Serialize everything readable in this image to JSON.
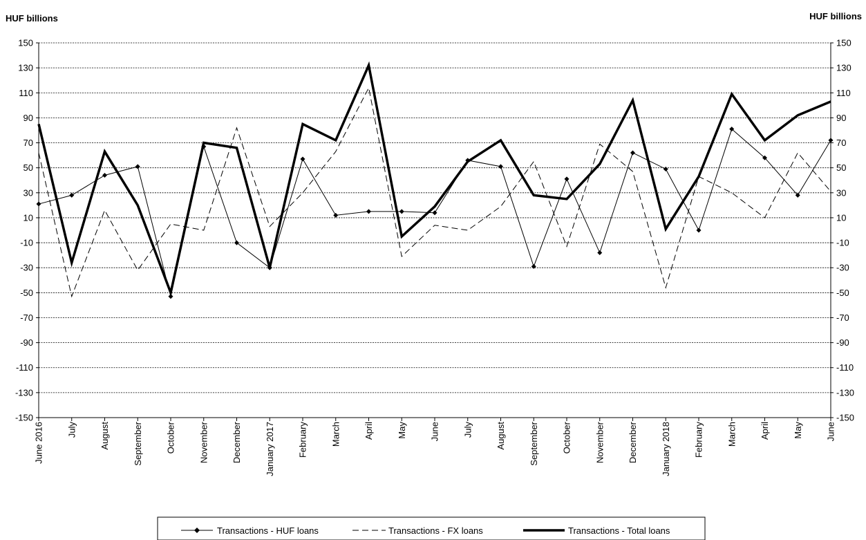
{
  "chart_data": {
    "type": "line",
    "y_unit_left": "HUF billions",
    "y_unit_right": "HUF billions",
    "ylim": [
      -150,
      150
    ],
    "ytick_step": 20,
    "yticks": [
      150,
      130,
      110,
      90,
      70,
      50,
      30,
      10,
      -10,
      -30,
      -50,
      -70,
      -90,
      -110,
      -130,
      -150
    ],
    "grid": true,
    "legend_position": "bottom",
    "categories": [
      "June 2016",
      "July",
      "August",
      "September",
      "October",
      "November",
      "December",
      "January 2017",
      "February",
      "March",
      "April",
      "May",
      "June",
      "July",
      "August",
      "September",
      "October",
      "November",
      "December",
      "January 2018",
      "February",
      "March",
      "April",
      "May",
      "June"
    ],
    "series": [
      {
        "name": "Transactions - HUF loans",
        "style": "thin-diamond",
        "color": "#000000",
        "values": [
          21,
          28,
          44,
          51,
          -53,
          67,
          -10,
          -30,
          57,
          12,
          15,
          15,
          14,
          56,
          51,
          -29,
          41,
          -18,
          62,
          49,
          0,
          81,
          58,
          28,
          72
        ]
      },
      {
        "name": "Transactions - FX loans",
        "style": "dashed",
        "color": "#000000",
        "values": [
          62,
          -53,
          16,
          -32,
          5,
          0,
          82,
          3,
          30,
          63,
          114,
          -21,
          4,
          0,
          19,
          55,
          -13,
          69,
          47,
          -46,
          43,
          30,
          10,
          62,
          31
        ]
      },
      {
        "name": "Transactions - Total loans",
        "style": "thick",
        "color": "#000000",
        "values": [
          85,
          -26,
          63,
          20,
          -50,
          70,
          66,
          -30,
          85,
          72,
          132,
          -5,
          19,
          55,
          72,
          28,
          25,
          53,
          104,
          1,
          43,
          109,
          72,
          92,
          103
        ]
      }
    ]
  }
}
